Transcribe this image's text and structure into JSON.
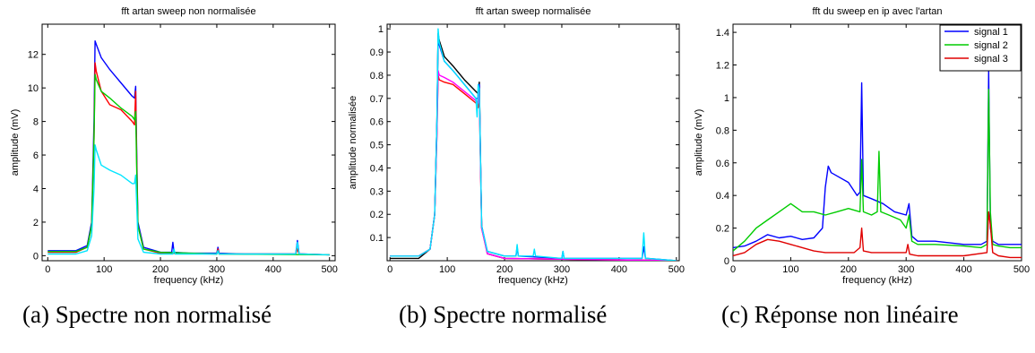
{
  "captions": {
    "a": "(a) Spectre non normalisé",
    "b": "(b) Spectre normalisé",
    "c": "(c) Réponse non linéaire"
  },
  "chart_data": [
    {
      "type": "line",
      "title": "fft artan sweep non normalisée",
      "xlabel": "frequency (kHz)",
      "ylabel": "amplitude (mV)",
      "xlim": [
        -10,
        510
      ],
      "ylim": [
        -0.3,
        13.8
      ],
      "xticks": [
        0,
        100,
        200,
        300,
        400,
        500
      ],
      "yticks": [
        0,
        2,
        4,
        6,
        8,
        10,
        12
      ],
      "grid": false,
      "series": [
        {
          "color": "#0000ff",
          "x": [
            0,
            50,
            70,
            78,
            82,
            84,
            86,
            95,
            110,
            130,
            150,
            154,
            156,
            158,
            160,
            170,
            200,
            220,
            222,
            224,
            250,
            300,
            302,
            304,
            350,
            400,
            440,
            443,
            446,
            450,
            500
          ],
          "y": [
            0.3,
            0.3,
            0.6,
            2.0,
            8.0,
            12.8,
            12.6,
            11.8,
            11.1,
            10.3,
            9.5,
            9.4,
            10.1,
            6.0,
            2.0,
            0.5,
            0.2,
            0.2,
            0.8,
            0.2,
            0.15,
            0.15,
            0.5,
            0.15,
            0.1,
            0.1,
            0.1,
            0.9,
            0.1,
            0.1,
            0.05
          ]
        },
        {
          "color": "#ff0000",
          "x": [
            0,
            50,
            70,
            78,
            82,
            84,
            86,
            95,
            110,
            130,
            150,
            154,
            156,
            158,
            160,
            170,
            200,
            300,
            302,
            304,
            350,
            400,
            440,
            443,
            446,
            450,
            500
          ],
          "y": [
            0.2,
            0.2,
            0.5,
            1.8,
            7.0,
            11.5,
            11.0,
            9.8,
            9.0,
            8.7,
            8.0,
            7.8,
            9.8,
            5.5,
            1.8,
            0.4,
            0.15,
            0.1,
            0.4,
            0.1,
            0.1,
            0.1,
            0.1,
            0.4,
            0.1,
            0.1,
            0.05
          ]
        },
        {
          "color": "#00cc00",
          "x": [
            0,
            50,
            70,
            78,
            82,
            84,
            86,
            95,
            110,
            130,
            150,
            154,
            156,
            158,
            160,
            170,
            200,
            300,
            302,
            304,
            500
          ],
          "y": [
            0.25,
            0.25,
            0.5,
            1.8,
            7.0,
            10.8,
            10.5,
            9.8,
            9.4,
            8.8,
            8.3,
            8.1,
            8.6,
            5.0,
            1.8,
            0.4,
            0.2,
            0.1,
            0.3,
            0.1,
            0.05
          ]
        },
        {
          "color": "#00e5ff",
          "x": [
            0,
            50,
            70,
            78,
            82,
            84,
            86,
            95,
            110,
            130,
            150,
            154,
            156,
            158,
            160,
            170,
            200,
            222,
            224,
            226,
            300,
            302,
            304,
            400,
            440,
            443,
            446,
            450,
            500
          ],
          "y": [
            0.1,
            0.1,
            0.3,
            1.2,
            4.0,
            6.6,
            6.3,
            5.4,
            5.1,
            4.8,
            4.3,
            4.3,
            4.8,
            3.0,
            1.0,
            0.2,
            0.1,
            0.1,
            0.4,
            0.1,
            0.1,
            0.3,
            0.1,
            0.1,
            0.1,
            0.8,
            0.1,
            0.1,
            0.05
          ]
        }
      ]
    },
    {
      "type": "line",
      "title": "fft artan sweep normalisée",
      "xlabel": "frequency (kHz)",
      "ylabel": "amplitude normalisée",
      "xlim": [
        -5,
        505
      ],
      "ylim": [
        0,
        1.02
      ],
      "xticks": [
        0,
        100,
        200,
        300,
        400,
        500
      ],
      "yticks": [
        0.1,
        0.2,
        0.3,
        0.4,
        0.5,
        0.6,
        0.7,
        0.8,
        0.9,
        1
      ],
      "ytick_labels": [
        "0.1",
        "0.2",
        "0.3",
        "0.4",
        "0.5",
        "0.6",
        "0.7",
        "0.8",
        "0.9",
        "1"
      ],
      "grid": false,
      "series": [
        {
          "color": "#000000",
          "x": [
            0,
            50,
            70,
            78,
            82,
            84,
            86,
            95,
            110,
            130,
            150,
            154,
            156,
            158,
            160,
            170,
            200,
            500
          ],
          "y": [
            0.01,
            0.01,
            0.05,
            0.2,
            0.6,
            0.98,
            0.95,
            0.88,
            0.84,
            0.78,
            0.73,
            0.72,
            0.77,
            0.45,
            0.15,
            0.03,
            0.01,
            0.0
          ]
        },
        {
          "color": "#0000ff",
          "x": [
            0,
            50,
            70,
            78,
            82,
            84,
            86,
            95,
            110,
            130,
            150,
            154,
            156,
            158,
            160,
            170,
            200,
            220,
            222,
            224,
            300,
            302,
            304,
            440,
            443,
            446,
            450,
            500
          ],
          "y": [
            0.02,
            0.02,
            0.05,
            0.2,
            0.6,
            0.97,
            0.93,
            0.86,
            0.82,
            0.76,
            0.7,
            0.7,
            0.76,
            0.45,
            0.15,
            0.04,
            0.02,
            0.02,
            0.06,
            0.02,
            0.01,
            0.04,
            0.01,
            0.01,
            0.06,
            0.01,
            0.01,
            0.0
          ]
        },
        {
          "color": "#ff0000",
          "x": [
            0,
            50,
            70,
            78,
            82,
            84,
            86,
            95,
            110,
            130,
            150,
            154,
            156,
            158,
            160,
            170,
            200,
            500
          ],
          "y": [
            0.02,
            0.02,
            0.05,
            0.2,
            0.55,
            0.8,
            0.78,
            0.77,
            0.76,
            0.72,
            0.68,
            0.66,
            0.72,
            0.42,
            0.14,
            0.03,
            0.01,
            0.0
          ]
        },
        {
          "color": "#ff00ff",
          "x": [
            0,
            50,
            70,
            78,
            82,
            84,
            86,
            95,
            110,
            130,
            150,
            154,
            156,
            158,
            160,
            170,
            200,
            500
          ],
          "y": [
            0.02,
            0.02,
            0.05,
            0.2,
            0.55,
            0.82,
            0.8,
            0.79,
            0.77,
            0.73,
            0.69,
            0.68,
            0.73,
            0.43,
            0.14,
            0.03,
            0.01,
            0.0
          ]
        },
        {
          "color": "#00e5ff",
          "x": [
            0,
            50,
            70,
            78,
            82,
            84,
            86,
            95,
            110,
            130,
            150,
            152,
            154,
            156,
            158,
            160,
            170,
            200,
            220,
            222,
            224,
            250,
            252,
            254,
            300,
            302,
            304,
            440,
            443,
            446,
            450,
            500
          ],
          "y": [
            0.02,
            0.02,
            0.05,
            0.2,
            0.6,
            1.0,
            0.94,
            0.86,
            0.82,
            0.76,
            0.7,
            0.62,
            0.76,
            0.74,
            0.45,
            0.15,
            0.04,
            0.02,
            0.02,
            0.07,
            0.02,
            0.02,
            0.05,
            0.02,
            0.01,
            0.04,
            0.01,
            0.01,
            0.12,
            0.01,
            0.01,
            0.0
          ]
        }
      ]
    },
    {
      "type": "line",
      "title": "fft du sweep en ip avec l'artan",
      "xlabel": "frequency (kHz)",
      "ylabel": "amplitude (mV)",
      "xlim": [
        0,
        500
      ],
      "ylim": [
        0,
        1.45
      ],
      "xticks": [
        0,
        100,
        200,
        300,
        400,
        500
      ],
      "yticks": [
        0,
        0.2,
        0.4,
        0.6,
        0.8,
        1,
        1.2,
        1.4
      ],
      "ytick_labels": [
        "0",
        "0.2",
        "0.4",
        "0.6",
        "0.8",
        "1",
        "1.2",
        "1.4"
      ],
      "grid": false,
      "legend": "top-right",
      "series": [
        {
          "name": "signal 1",
          "color": "#0000ff",
          "x": [
            0,
            20,
            40,
            60,
            80,
            100,
            120,
            140,
            155,
            160,
            165,
            170,
            180,
            200,
            215,
            220,
            223,
            226,
            240,
            260,
            280,
            300,
            305,
            310,
            320,
            350,
            400,
            430,
            440,
            443,
            446,
            450,
            460,
            480,
            500
          ],
          "y": [
            0.08,
            0.09,
            0.12,
            0.16,
            0.14,
            0.15,
            0.13,
            0.14,
            0.2,
            0.45,
            0.58,
            0.54,
            0.52,
            0.48,
            0.4,
            0.42,
            1.09,
            0.4,
            0.38,
            0.35,
            0.3,
            0.28,
            0.35,
            0.15,
            0.12,
            0.12,
            0.1,
            0.1,
            0.12,
            1.16,
            0.2,
            0.12,
            0.1,
            0.1,
            0.1
          ]
        },
        {
          "name": "signal 2",
          "color": "#00cc00",
          "x": [
            0,
            20,
            40,
            60,
            80,
            100,
            120,
            140,
            160,
            180,
            200,
            220,
            223,
            226,
            240,
            250,
            253,
            256,
            270,
            290,
            300,
            305,
            310,
            320,
            350,
            400,
            430,
            440,
            443,
            446,
            450,
            460,
            480,
            500
          ],
          "y": [
            0.06,
            0.12,
            0.2,
            0.25,
            0.3,
            0.35,
            0.3,
            0.3,
            0.28,
            0.3,
            0.32,
            0.3,
            0.62,
            0.3,
            0.28,
            0.3,
            0.67,
            0.3,
            0.28,
            0.25,
            0.2,
            0.28,
            0.12,
            0.1,
            0.1,
            0.09,
            0.08,
            0.1,
            1.05,
            0.3,
            0.1,
            0.09,
            0.08,
            0.08
          ]
        },
        {
          "name": "signal 3",
          "color": "#e00000",
          "x": [
            0,
            20,
            40,
            60,
            80,
            100,
            120,
            140,
            160,
            180,
            200,
            210,
            220,
            223,
            226,
            240,
            260,
            280,
            300,
            303,
            306,
            320,
            350,
            400,
            440,
            443,
            446,
            450,
            460,
            480,
            500
          ],
          "y": [
            0.03,
            0.05,
            0.1,
            0.13,
            0.12,
            0.1,
            0.08,
            0.06,
            0.05,
            0.05,
            0.05,
            0.05,
            0.08,
            0.2,
            0.06,
            0.05,
            0.05,
            0.05,
            0.05,
            0.1,
            0.04,
            0.03,
            0.03,
            0.03,
            0.05,
            0.3,
            0.22,
            0.05,
            0.03,
            0.02,
            0.02
          ]
        }
      ]
    }
  ]
}
